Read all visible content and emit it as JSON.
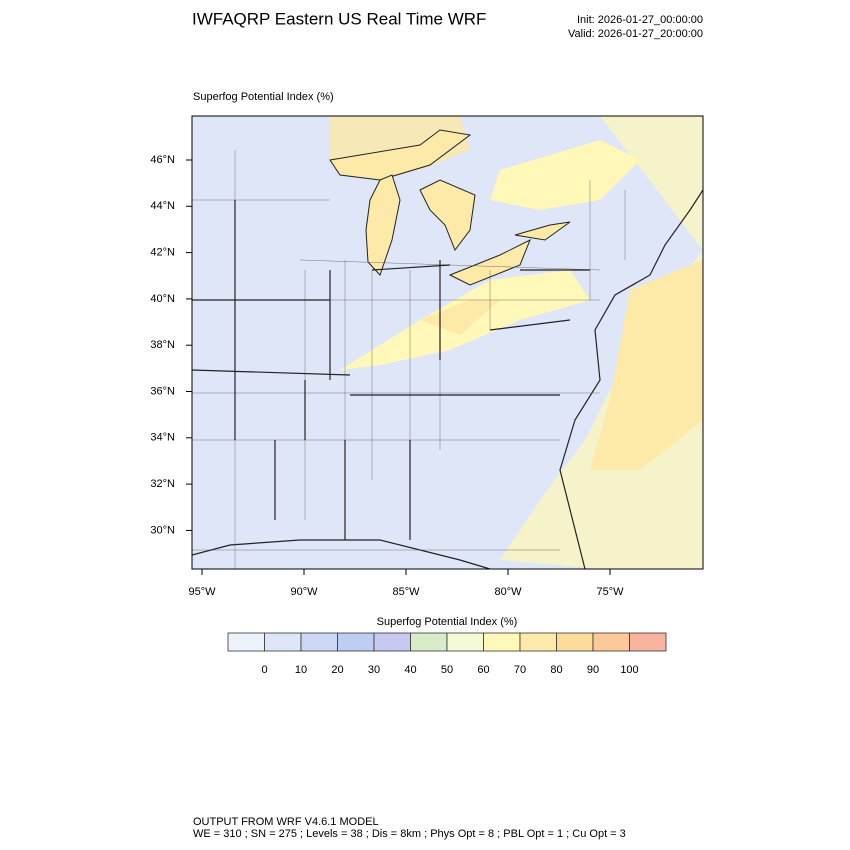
{
  "header": {
    "title": "IWFAQRP Eastern US Real Time WRF",
    "init": "Init: 2026-01-27_00:00:00",
    "valid": "Valid: 2026-01-27_20:00:00"
  },
  "map": {
    "field_label": "Superfog Potential Index   (%)",
    "lat_labels": [
      "46°N",
      "44°N",
      "42°N",
      "40°N",
      "38°N",
      "36°N",
      "34°N",
      "32°N",
      "30°N"
    ],
    "lon_labels": [
      "95°W",
      "90°W",
      "85°W",
      "80°W",
      "75°W"
    ]
  },
  "colorbar": {
    "title": "Superfog Potential Index  (%)",
    "levels": [
      0,
      10,
      20,
      30,
      40,
      50,
      60,
      70,
      80,
      90,
      100
    ],
    "colors": [
      "#eef2fa",
      "#dfe6f8",
      "#cdd8f5",
      "#bfcdf2",
      "#c6c9f0",
      "#d9ebc8",
      "#f3fad8",
      "#fff8b8",
      "#fde9a8",
      "#fcdc9c",
      "#fbc99a",
      "#f9b4a0"
    ]
  },
  "footer": {
    "line1": "OUTPUT FROM WRF V4.6.1 MODEL",
    "line2": "WE = 310 ; SN = 275 ; Levels = 38 ; Dis = 8km ; Phys Opt = 8 ; PBL Opt = 1 ; Cu Opt = 3"
  }
}
